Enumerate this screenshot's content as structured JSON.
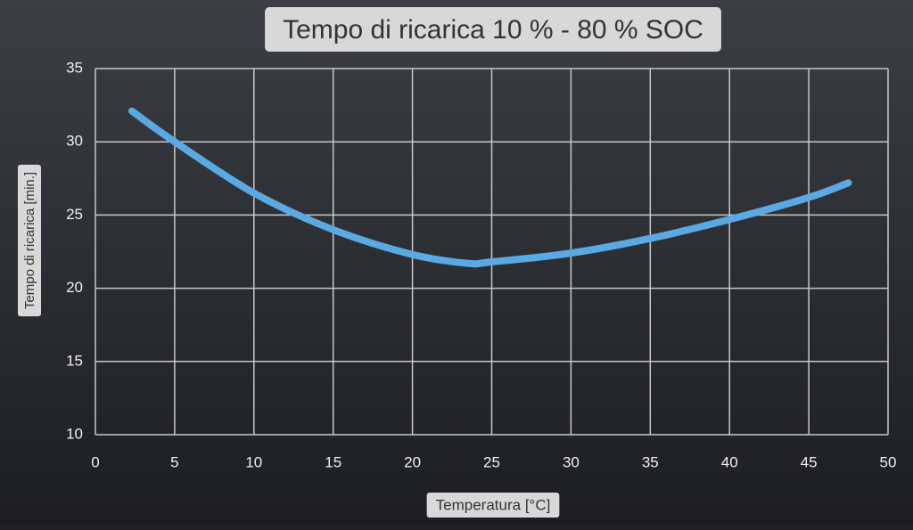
{
  "chart_data": {
    "type": "line",
    "title": "Tempo di ricarica 10 % - 80 % SOC",
    "x_label": "Temperatura [°C]",
    "y_label": "Tempo di ricarica [min.]",
    "x": [
      2.3,
      5,
      10,
      15,
      20,
      23.5,
      25,
      30,
      35,
      40,
      45,
      47.5
    ],
    "values": [
      32.1,
      30.0,
      26.5,
      24.0,
      22.3,
      21.7,
      21.8,
      22.4,
      23.4,
      24.7,
      26.2,
      27.2
    ],
    "color": "#5aa9e2",
    "xlim": [
      0,
      50
    ],
    "xticks": [
      0,
      5,
      10,
      15,
      20,
      25,
      30,
      35,
      40,
      45,
      50
    ],
    "ylim": [
      10,
      35
    ],
    "yticks": [
      10,
      15,
      20,
      25,
      30,
      35
    ],
    "grid": true
  }
}
